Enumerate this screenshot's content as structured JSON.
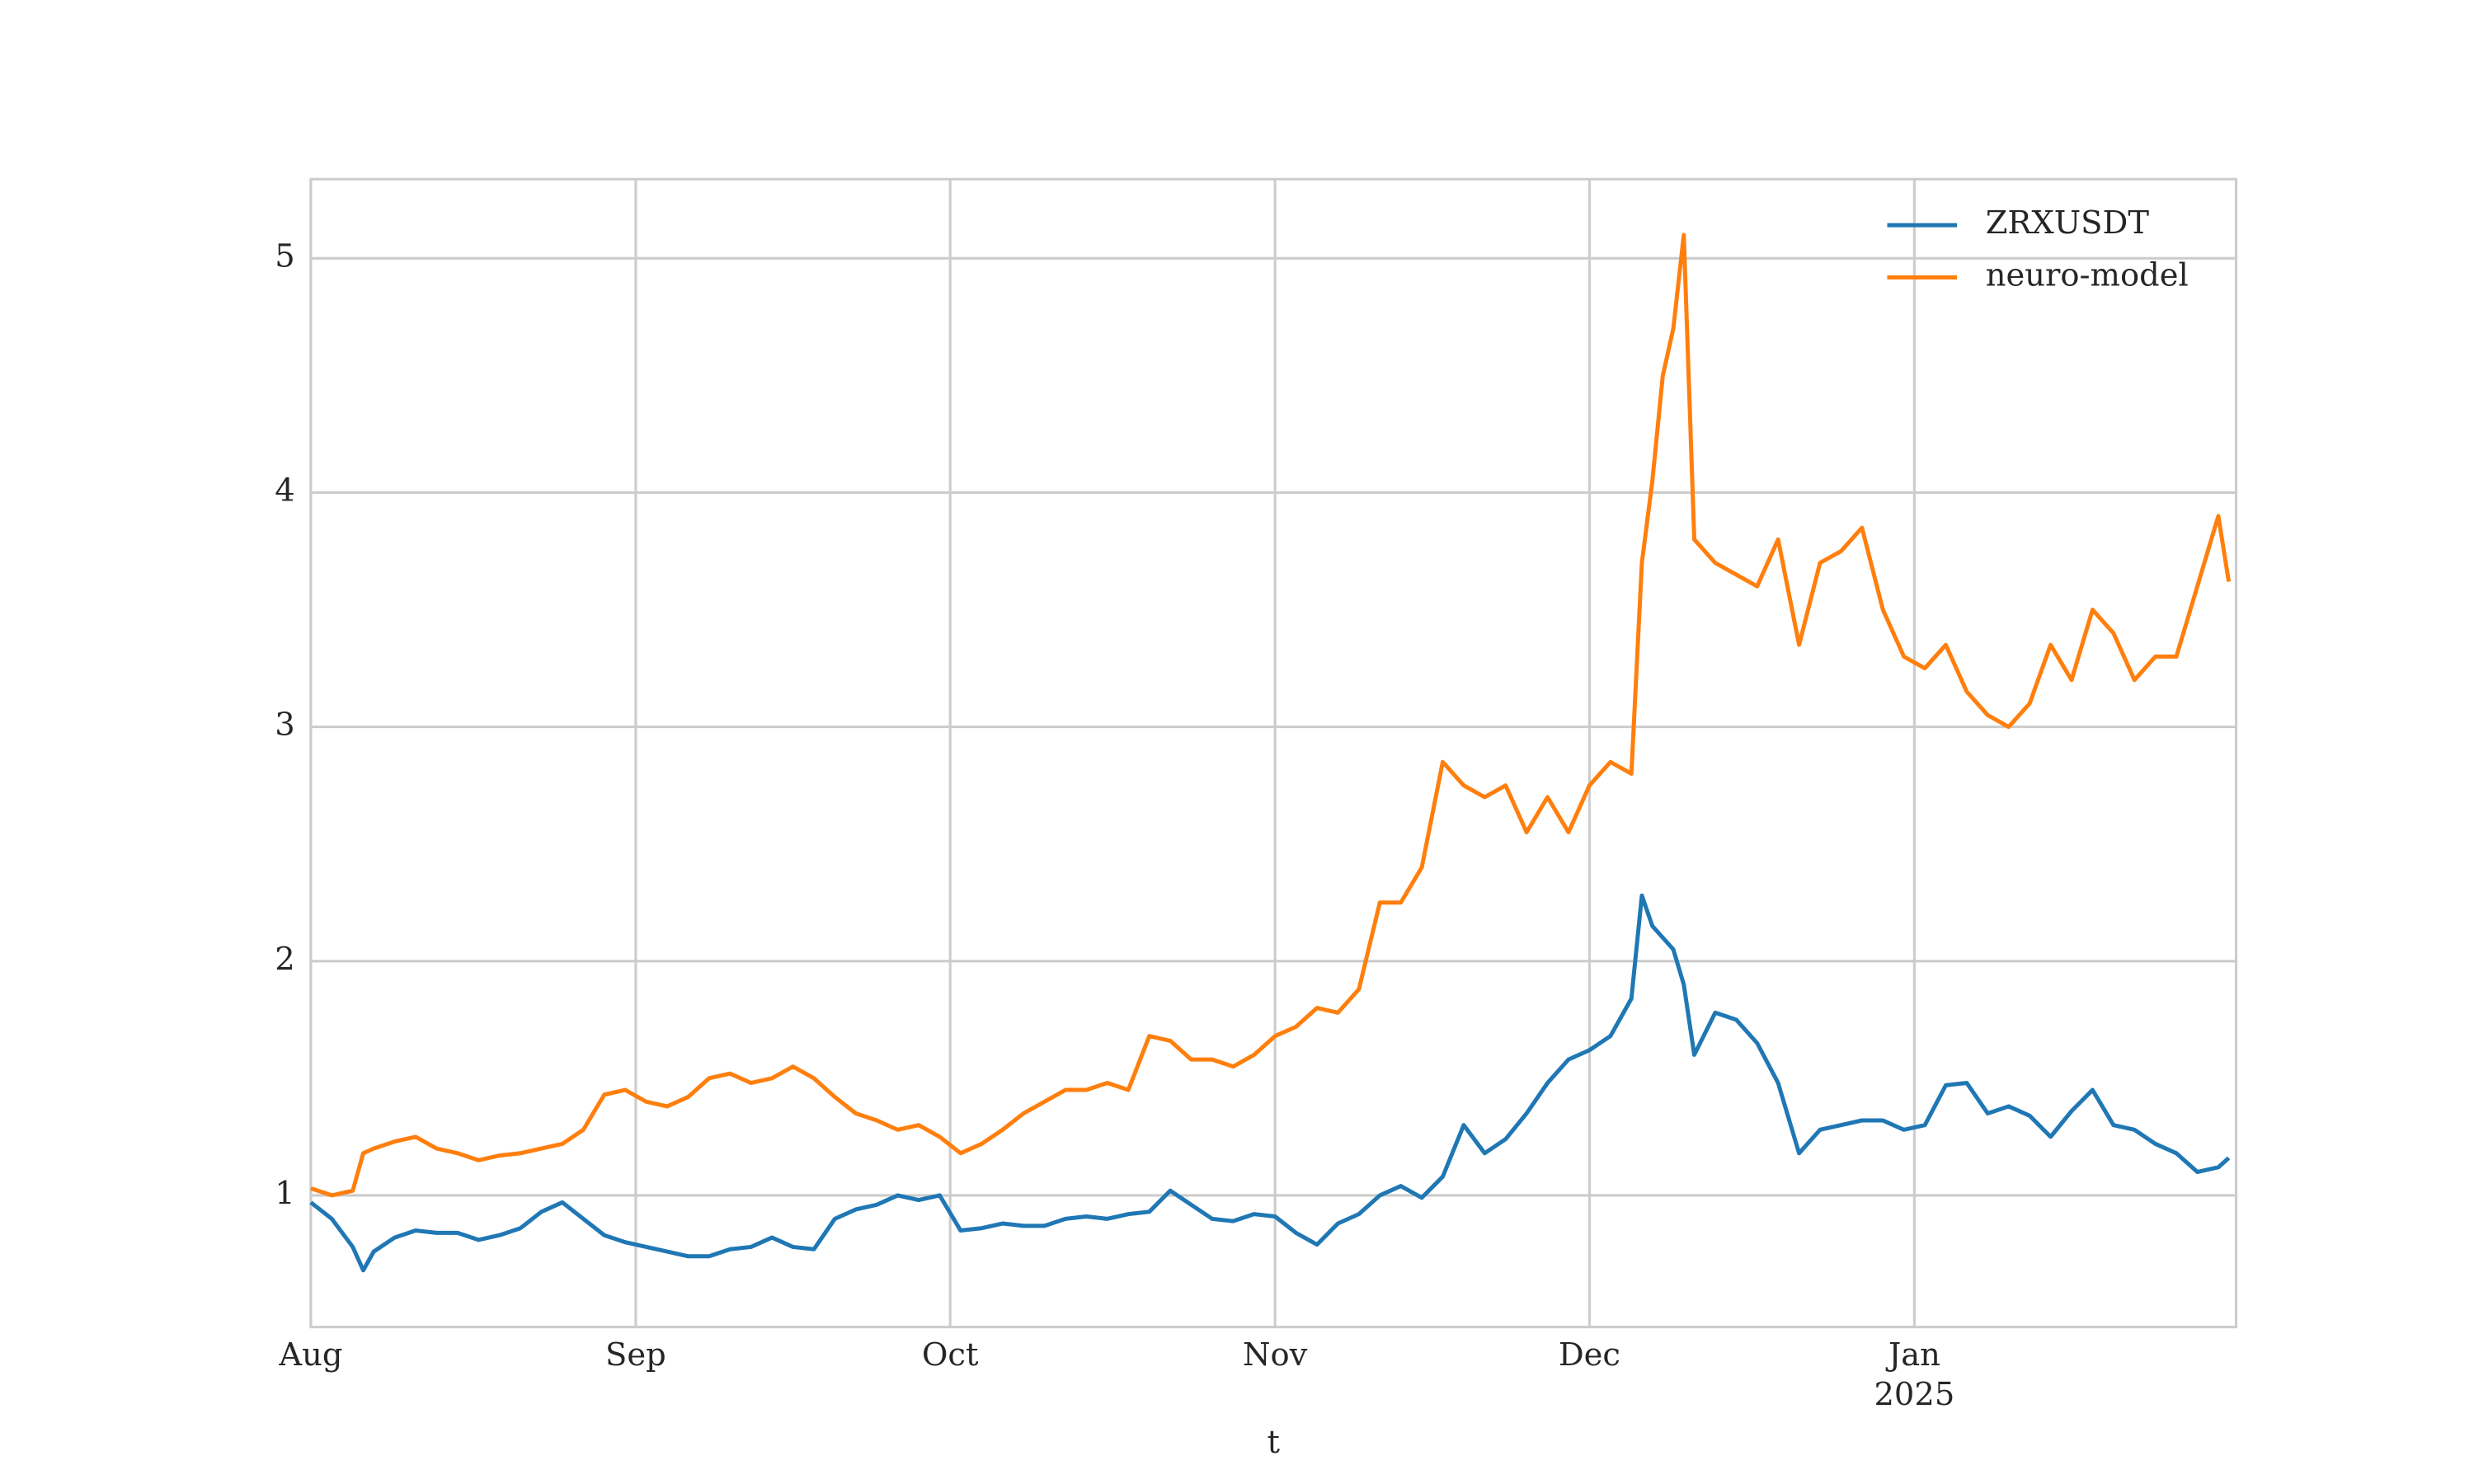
{
  "chart_data": {
    "type": "line",
    "x_label": "t",
    "x_year_label": "2025",
    "xlim": [
      0,
      183.7
    ],
    "ylim": [
      0.438,
      5.338
    ],
    "xticks": [
      {
        "value": 0,
        "label": "Aug"
      },
      {
        "value": 31,
        "label": "Sep"
      },
      {
        "value": 61,
        "label": "Oct"
      },
      {
        "value": 92,
        "label": "Nov"
      },
      {
        "value": 122,
        "label": "Dec"
      },
      {
        "value": 153,
        "label": "Jan"
      }
    ],
    "yticks": [
      1,
      2,
      3,
      4,
      5
    ],
    "grid": true,
    "legend": "upper right",
    "x": [
      0,
      2,
      4,
      5,
      6,
      8,
      10,
      12,
      14,
      16,
      18,
      20,
      22,
      24,
      26,
      28,
      30,
      32,
      34,
      36,
      38,
      40,
      42,
      44,
      46,
      48,
      50,
      52,
      54,
      56,
      58,
      60,
      62,
      64,
      66,
      68,
      70,
      72,
      74,
      76,
      78,
      80,
      82,
      84,
      86,
      88,
      90,
      92,
      94,
      96,
      98,
      100,
      102,
      104,
      106,
      108,
      110,
      112,
      114,
      116,
      118,
      120,
      122,
      124,
      126,
      127,
      128,
      129,
      130,
      131,
      132,
      134,
      136,
      138,
      140,
      142,
      144,
      146,
      148,
      150,
      152,
      154,
      156,
      158,
      160,
      162,
      164,
      166,
      168,
      170,
      172,
      174,
      176,
      178,
      180,
      182,
      183
    ],
    "series": [
      {
        "name": "ZRXUSDT",
        "color": "#1f77b4",
        "values": [
          0.97,
          0.9,
          0.78,
          0.68,
          0.76,
          0.82,
          0.85,
          0.84,
          0.84,
          0.81,
          0.83,
          0.86,
          0.93,
          0.97,
          0.9,
          0.83,
          0.8,
          0.78,
          0.76,
          0.74,
          0.74,
          0.77,
          0.78,
          0.82,
          0.78,
          0.77,
          0.9,
          0.94,
          0.96,
          1.0,
          0.98,
          1.0,
          0.85,
          0.86,
          0.88,
          0.87,
          0.87,
          0.9,
          0.91,
          0.9,
          0.92,
          0.93,
          1.02,
          0.96,
          0.9,
          0.89,
          0.92,
          0.91,
          0.84,
          0.79,
          0.88,
          0.92,
          1.0,
          1.04,
          0.99,
          1.08,
          1.3,
          1.18,
          1.24,
          1.35,
          1.48,
          1.58,
          1.62,
          1.68,
          1.84,
          2.28,
          2.15,
          2.1,
          2.05,
          1.9,
          1.6,
          1.78,
          1.75,
          1.65,
          1.48,
          1.18,
          1.28,
          1.3,
          1.32,
          1.32,
          1.28,
          1.3,
          1.47,
          1.48,
          1.35,
          1.38,
          1.34,
          1.25,
          1.36,
          1.45,
          1.3,
          1.28,
          1.22,
          1.18,
          1.1,
          1.12,
          1.16
        ]
      },
      {
        "name": "neuro-model",
        "color": "#ff7f0e",
        "values": [
          1.03,
          1.0,
          1.02,
          1.18,
          1.2,
          1.23,
          1.25,
          1.2,
          1.18,
          1.15,
          1.17,
          1.18,
          1.2,
          1.22,
          1.28,
          1.43,
          1.45,
          1.4,
          1.38,
          1.42,
          1.5,
          1.52,
          1.48,
          1.5,
          1.55,
          1.5,
          1.42,
          1.35,
          1.32,
          1.28,
          1.3,
          1.25,
          1.18,
          1.22,
          1.28,
          1.35,
          1.4,
          1.45,
          1.45,
          1.48,
          1.45,
          1.68,
          1.66,
          1.58,
          1.58,
          1.55,
          1.6,
          1.68,
          1.72,
          1.8,
          1.78,
          1.88,
          2.25,
          2.25,
          2.4,
          2.85,
          2.75,
          2.7,
          2.75,
          2.55,
          2.7,
          2.55,
          2.75,
          2.85,
          2.8,
          3.7,
          4.05,
          4.5,
          4.7,
          5.1,
          3.8,
          3.7,
          3.65,
          3.6,
          3.8,
          3.35,
          3.7,
          3.75,
          3.85,
          3.5,
          3.3,
          3.25,
          3.35,
          3.15,
          3.05,
          3.0,
          3.1,
          3.35,
          3.2,
          3.5,
          3.4,
          3.2,
          3.3,
          3.3,
          3.6,
          3.9,
          3.62
        ]
      }
    ]
  }
}
